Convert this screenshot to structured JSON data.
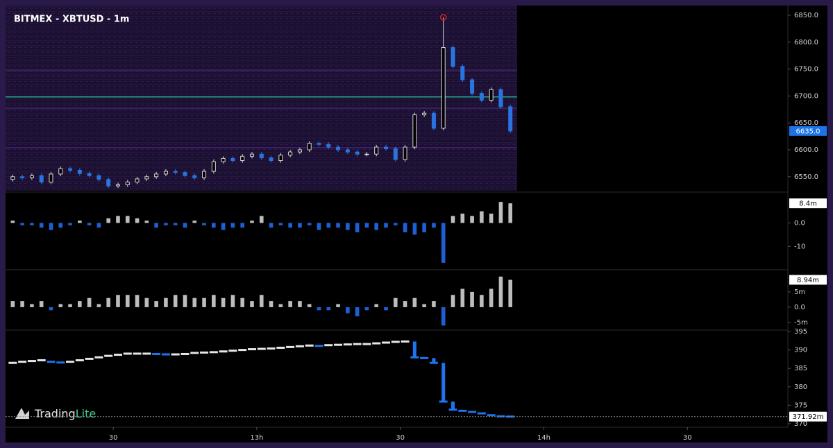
{
  "brand": {
    "name": "Trading",
    "suffix": "Lite"
  },
  "chart_data": [
    {
      "type": "candlestick",
      "title": "BITMEX - XBTUSD - 1m",
      "x": [
        9,
        11,
        13,
        15,
        17,
        19,
        21,
        23,
        25,
        27,
        29,
        31,
        33,
        35,
        37,
        39,
        41,
        43,
        45,
        47,
        49,
        51,
        53,
        55,
        57,
        59,
        61,
        63,
        65,
        67,
        69,
        71,
        73,
        75,
        77,
        79,
        81,
        83,
        85,
        87,
        89,
        91,
        93,
        95,
        97,
        99,
        101,
        103,
        105,
        107,
        109,
        111,
        113
      ],
      "open": [
        6545,
        6550,
        6548,
        6552,
        6540,
        6555,
        6565,
        6562,
        6556,
        6552,
        6545,
        6533,
        6535,
        6540,
        6546,
        6550,
        6555,
        6560,
        6558,
        6552,
        6548,
        6560,
        6578,
        6584,
        6580,
        6588,
        6592,
        6585,
        6580,
        6590,
        6596,
        6600,
        6612,
        6610,
        6605,
        6600,
        6596,
        6592,
        6592,
        6605,
        6602,
        6582,
        6605,
        6665,
        6668,
        6640,
        6790,
        6755,
        6730,
        6705,
        6692,
        6712,
        6680
      ],
      "high": [
        6554,
        6554,
        6556,
        6556,
        6559,
        6569,
        6569,
        6566,
        6560,
        6556,
        6549,
        6539,
        6544,
        6550,
        6554,
        6559,
        6564,
        6564,
        6562,
        6556,
        6564,
        6582,
        6588,
        6588,
        6592,
        6596,
        6596,
        6589,
        6594,
        6600,
        6604,
        6616,
        6616,
        6614,
        6609,
        6604,
        6600,
        6596,
        6609,
        6609,
        6606,
        6609,
        6669,
        6672,
        6672,
        6846,
        6794,
        6759,
        6734,
        6709,
        6716,
        6716,
        6684
      ],
      "low": [
        6541,
        6544,
        6544,
        6536,
        6536,
        6551,
        6558,
        6552,
        6548,
        6541,
        6529,
        6529,
        6531,
        6536,
        6542,
        6546,
        6551,
        6554,
        6548,
        6544,
        6544,
        6556,
        6574,
        6576,
        6576,
        6584,
        6581,
        6576,
        6576,
        6586,
        6592,
        6596,
        6606,
        6601,
        6596,
        6592,
        6588,
        6588,
        6588,
        6598,
        6578,
        6578,
        6601,
        6661,
        6636,
        6636,
        6751,
        6726,
        6701,
        6688,
        6688,
        6676,
        6631
      ],
      "close": [
        6550,
        6548,
        6552,
        6540,
        6555,
        6565,
        6562,
        6556,
        6552,
        6545,
        6533,
        6535,
        6540,
        6546,
        6550,
        6555,
        6560,
        6558,
        6552,
        6548,
        6560,
        6578,
        6584,
        6580,
        6588,
        6592,
        6585,
        6580,
        6590,
        6596,
        6600,
        6612,
        6610,
        6605,
        6600,
        6596,
        6592,
        6592,
        6605,
        6602,
        6582,
        6605,
        6665,
        6668,
        6640,
        6790,
        6755,
        6730,
        6705,
        6692,
        6712,
        6680,
        6635
      ],
      "up_color": "#d9d9d9",
      "down_color": "#2a74e0",
      "xlim": [
        7.5,
        171
      ],
      "xticks": [
        {
          "value": 30,
          "label": "30"
        },
        {
          "value": 60,
          "label": "13h"
        },
        {
          "value": 90,
          "label": "30"
        },
        {
          "value": 120,
          "label": "14h"
        },
        {
          "value": 150,
          "label": "30"
        }
      ],
      "ylim": [
        6524,
        6868
      ],
      "yticks": [
        {
          "value": 6550,
          "label": "6550.0"
        },
        {
          "value": 6600,
          "label": "6600.0"
        },
        {
          "value": 6650,
          "label": "6650.0"
        },
        {
          "value": 6700,
          "label": "6700.0"
        },
        {
          "value": 6750,
          "label": "6750.0"
        },
        {
          "value": 6800,
          "label": "6800.0"
        },
        {
          "value": 6850,
          "label": "6850.0"
        }
      ],
      "last_label": "6635.0"
    },
    {
      "type": "bar",
      "values": [
        1,
        -1,
        -1,
        -2,
        -3,
        -2,
        -1,
        1,
        -1,
        -2,
        2,
        3,
        3,
        2,
        1,
        -2,
        -1,
        -1,
        -2,
        1,
        -1,
        -2,
        -3,
        -2,
        -2,
        1,
        3,
        -2,
        -1,
        -2,
        -2,
        -1,
        -3,
        -2,
        -2,
        -3,
        -4,
        -2,
        -3,
        -2,
        -1,
        -4,
        -5,
        -4,
        -2,
        -17,
        3,
        4,
        3,
        5,
        4,
        9,
        8.4
      ],
      "up_color": "#bdbdbd",
      "down_color": "#1f5fd6",
      "ylim": [
        -19.7,
        12.6
      ],
      "yticks": [
        {
          "value": 0,
          "label": "0.0"
        },
        -10
      ],
      "last_label": "8.4m"
    },
    {
      "type": "bar",
      "values": [
        2,
        2,
        1,
        2,
        -1,
        1,
        1,
        2,
        3,
        1,
        3,
        4,
        4,
        4,
        3,
        2,
        3,
        4,
        4,
        3,
        3,
        4,
        3,
        4,
        3,
        2,
        4,
        2,
        1,
        2,
        2,
        1,
        -1,
        -1,
        1,
        -2,
        -3,
        -1,
        1,
        -1,
        3,
        2,
        3,
        1,
        2,
        -6,
        4,
        6,
        5,
        4,
        6,
        10,
        8.94
      ],
      "up_color": "#bdbdbd",
      "down_color": "#1f5fd6",
      "ylim": [
        -7.5,
        12
      ],
      "yticks": [
        {
          "value": 5,
          "label": "5m"
        },
        {
          "value": 0,
          "label": "0.0"
        },
        {
          "value": -5,
          "label": "-5m"
        }
      ],
      "last_label": "8.94m"
    },
    {
      "type": "step",
      "values": [
        386.5,
        386.8,
        387,
        387.2,
        386.8,
        386.6,
        386.8,
        387.2,
        387.6,
        388,
        388.4,
        388.7,
        389,
        389,
        389,
        388.9,
        388.8,
        388.8,
        388.9,
        389.2,
        389.3,
        389.4,
        389.6,
        389.8,
        390,
        390.2,
        390.3,
        390.4,
        390.6,
        390.8,
        391,
        391.2,
        391.1,
        391.3,
        391.4,
        391.5,
        391.6,
        391.6,
        391.8,
        392,
        392.2,
        392.3,
        388,
        387.8,
        386.5,
        376,
        373.8,
        373.5,
        373.2,
        372.8,
        372.3,
        372,
        371.92
      ],
      "up_color": "#e6e6e6",
      "down_color": "#1e73f0",
      "ylim": [
        369.8,
        395.2
      ],
      "yticks": [
        395,
        390,
        385,
        380,
        375,
        370
      ],
      "last_label": "371.92m"
    }
  ]
}
